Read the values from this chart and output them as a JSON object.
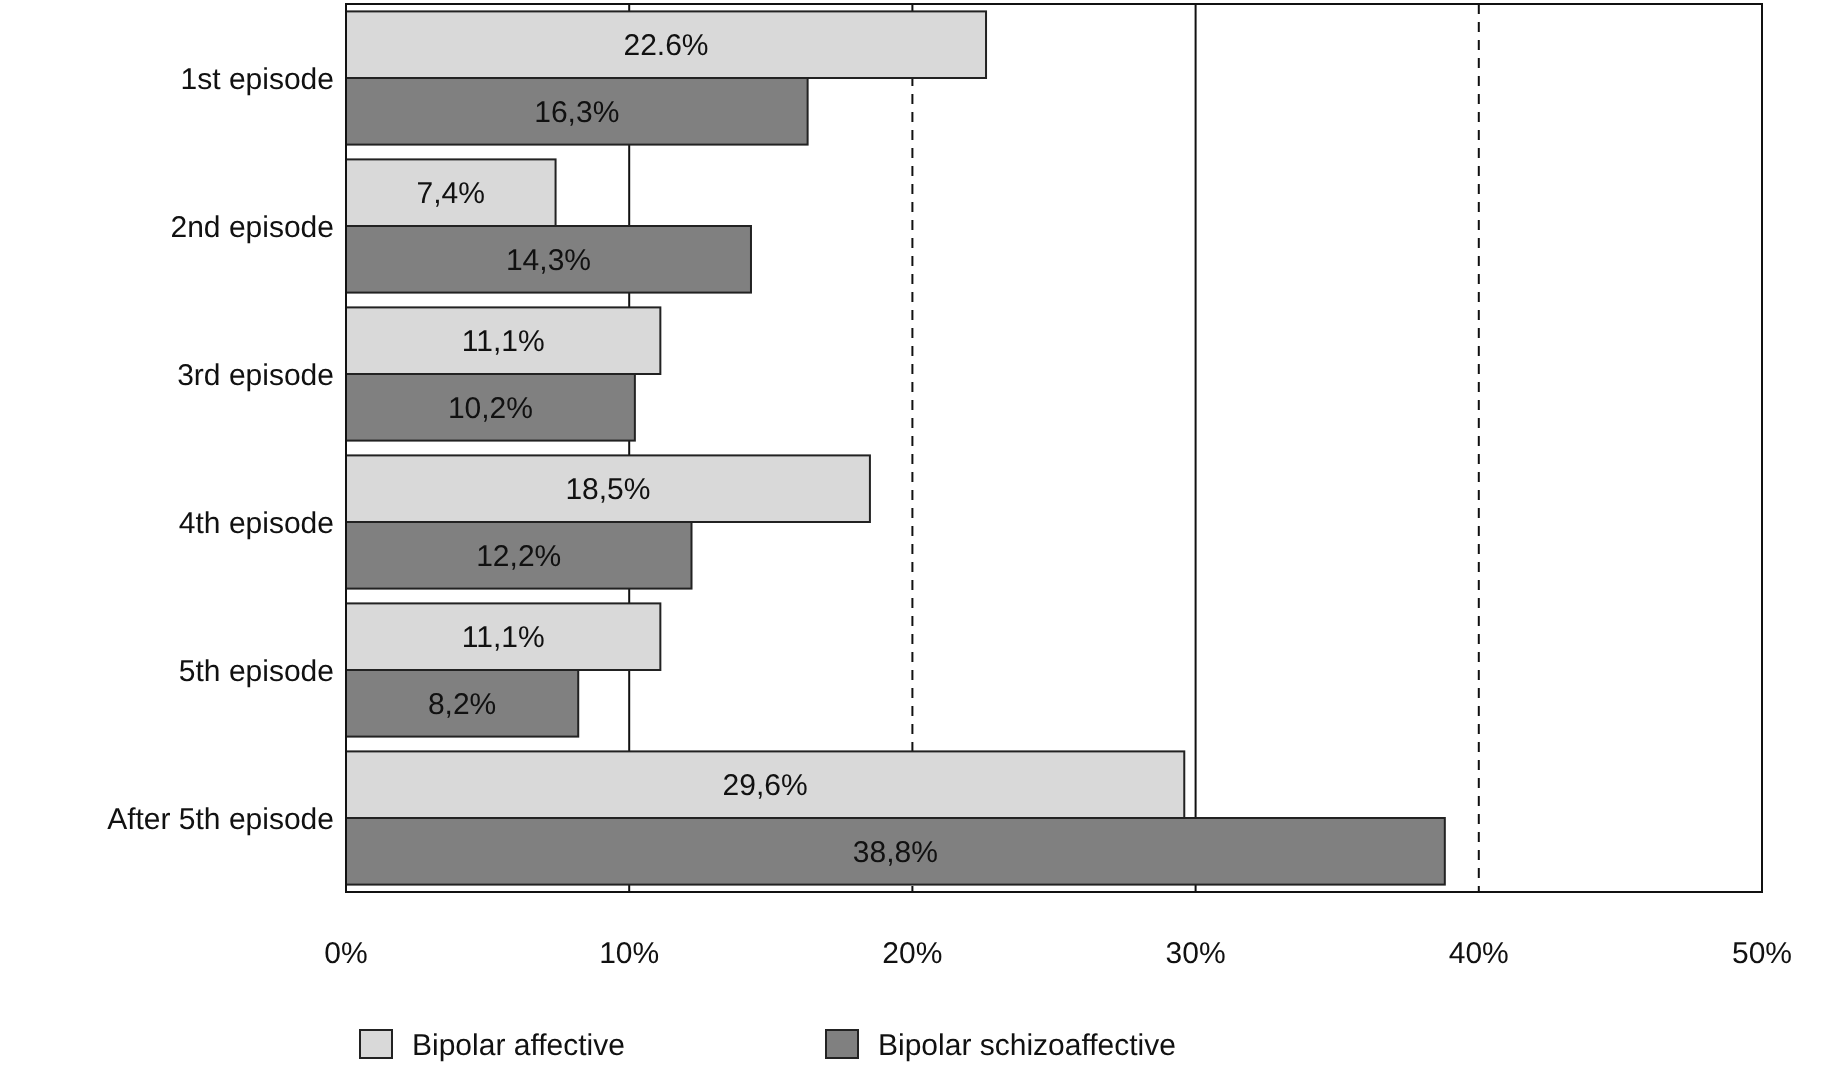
{
  "chart_data": {
    "type": "bar",
    "orientation": "horizontal",
    "categories": [
      "1st episode",
      "2nd episode",
      "3rd episode",
      "4th episode",
      "5th episode",
      "After 5th episode"
    ],
    "series": [
      {
        "name": "Bipolar affective",
        "color": "#d9d9d9",
        "values": [
          22.6,
          7.4,
          11.1,
          18.5,
          11.1,
          29.6
        ],
        "value_labels": [
          "22.6%",
          "7,4%",
          "11,1%",
          "18,5%",
          "11,1%",
          "29,6%"
        ]
      },
      {
        "name": "Bipolar schizoaffective",
        "color": "#808080",
        "values": [
          16.3,
          14.3,
          10.2,
          12.2,
          8.2,
          38.8
        ],
        "value_labels": [
          "16,3%",
          "14,3%",
          "10,2%",
          "12,2%",
          "8,2%",
          "38,8%"
        ]
      }
    ],
    "xlim": [
      0,
      50
    ],
    "xticks": [
      {
        "value": 0,
        "label": "0%"
      },
      {
        "value": 10,
        "label": "10%"
      },
      {
        "value": 20,
        "label": "20%"
      },
      {
        "value": 30,
        "label": "30%"
      },
      {
        "value": 40,
        "label": "40%"
      },
      {
        "value": 50,
        "label": "50%"
      }
    ],
    "grid": "x",
    "legend": "bottom"
  }
}
